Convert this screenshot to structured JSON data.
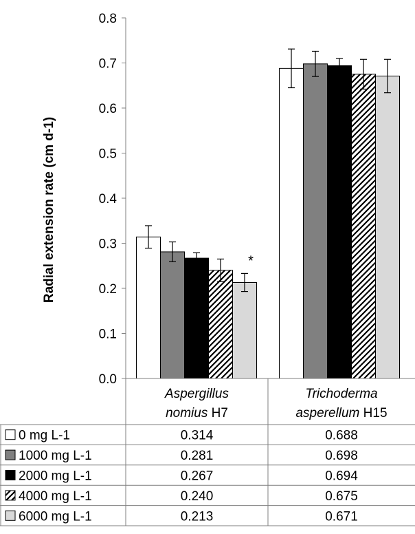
{
  "chart_data": {
    "type": "bar",
    "ylabel": "Radial extension rate (cm d-1)",
    "ylim": [
      0,
      0.8
    ],
    "yticks": [
      "0.0",
      "0.1",
      "0.2",
      "0.3",
      "0.4",
      "0.5",
      "0.6",
      "0.7",
      "0.8"
    ],
    "grid": false,
    "categories": [
      {
        "label": "Aspergillus nomius H7",
        "line1": "Aspergillus",
        "line2_italic": "nomius",
        "line2_rest": " H7"
      },
      {
        "label": "Trichoderma asperellum H15",
        "line1": "Trichoderma",
        "line2_italic": "asperellum",
        "line2_rest": " H15"
      }
    ],
    "series": [
      {
        "name": "0 mg L-1",
        "values": [
          0.314,
          0.688
        ],
        "values_text": [
          "0.314",
          "0.688"
        ],
        "errors": [
          0.025,
          0.043
        ],
        "fill": "#ffffff",
        "pattern": "none"
      },
      {
        "name": "1000 mg L-1",
        "values": [
          0.281,
          0.698
        ],
        "values_text": [
          "0.281",
          "0.698"
        ],
        "errors": [
          0.022,
          0.028
        ],
        "fill": "#808080",
        "pattern": "none"
      },
      {
        "name": "2000 mg L-1",
        "values": [
          0.267,
          0.694
        ],
        "values_text": [
          "0.267",
          "0.694"
        ],
        "errors": [
          0.012,
          0.016
        ],
        "fill": "#000000",
        "pattern": "none"
      },
      {
        "name": "4000 mg L-1",
        "values": [
          0.24,
          0.675
        ],
        "values_text": [
          "0.240",
          "0.675"
        ],
        "errors": [
          0.025,
          0.033
        ],
        "fill": "#ffffff",
        "pattern": "diagonal-hatch"
      },
      {
        "name": "6000 mg L-1",
        "values": [
          0.213,
          0.671
        ],
        "values_text": [
          "0.213",
          "0.671"
        ],
        "errors": [
          0.02,
          0.037
        ],
        "fill": "#d9d9d9",
        "pattern": "none"
      }
    ],
    "annotations": [
      {
        "text": "*",
        "category": 0,
        "series": 4
      }
    ],
    "legend": "data-table-below"
  }
}
